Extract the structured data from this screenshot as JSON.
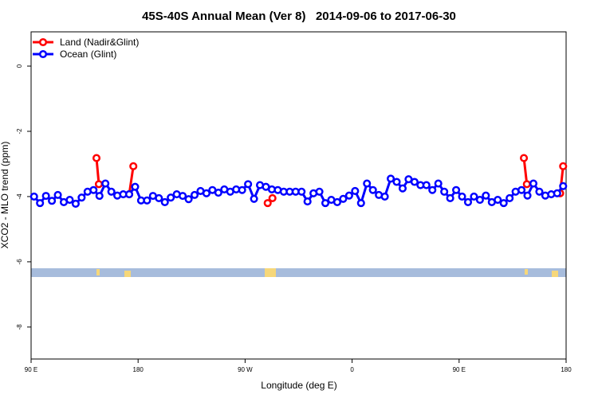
{
  "chart_data": {
    "type": "line",
    "title": "45S-40S Annual Mean (Ver 8)   2014-09-06 to 2017-06-30",
    "xlabel": "Longitude (deg E)",
    "ylabel": "XCO2 - MLO trend (ppm)",
    "xlim": [
      90,
      540
    ],
    "ylim": [
      -8.98,
      1.05
    ],
    "xticks": [
      {
        "value": 90,
        "label": "90 E"
      },
      180,
      {
        "value": 270,
        "label": "90 W"
      },
      {
        "value": 360,
        "label": "0"
      },
      {
        "value": 450,
        "label": "90 E"
      },
      {
        "value": 540,
        "label": "180"
      }
    ],
    "yticks": [
      0,
      -2,
      -4,
      -6,
      -8
    ],
    "legend": "top-left",
    "series": [
      {
        "name": "Land (Nadir&Glint)",
        "color": "#ff0000",
        "x": [
          145,
          147,
          null,
          172.5,
          176,
          null,
          289,
          293,
          null,
          504.5,
          507,
          null,
          535,
          537.5
        ],
        "values": [
          -2.82,
          -3.62,
          null,
          -3.93,
          -3.07,
          null,
          -4.2,
          -4.05,
          null,
          -2.82,
          -3.62,
          null,
          -3.9,
          -3.07
        ]
      },
      {
        "name": "Ocean (Glint)",
        "color": "#0000ff",
        "x": [
          92.5,
          97.5,
          102.5,
          107.5,
          112.5,
          117.5,
          122.5,
          127.5,
          132.5,
          137.5,
          142.5,
          147.5,
          152.5,
          157.5,
          162.5,
          167.5,
          172.5,
          177.5,
          182.5,
          187.5,
          192.5,
          197.5,
          202.5,
          207.5,
          212.5,
          217.5,
          222.5,
          227.5,
          232.5,
          237.5,
          242.5,
          247.5,
          252.5,
          257.5,
          262.5,
          267.5,
          272.5,
          277.5,
          282.5,
          287.5,
          292.5,
          297.5,
          302.5,
          307.5,
          312.5,
          317.5,
          322.5,
          327.5,
          332.5,
          337.5,
          342.5,
          347.5,
          352.5,
          357.5,
          362.5,
          367.5,
          372.5,
          377.5,
          382.5,
          387.5,
          392.5,
          397.5,
          402.5,
          407.5,
          412.5,
          417.5,
          422.5,
          427.5,
          432.5,
          437.5,
          442.5,
          447.5,
          452.5,
          457.5,
          462.5,
          467.5,
          472.5,
          477.5,
          482.5,
          487.5,
          492.5,
          497.5,
          502.5,
          507.5,
          512.5,
          517.5,
          522.5,
          527.5,
          532.5,
          537.5
        ],
        "values": [
          -4.0,
          -4.2,
          -3.98,
          -4.13,
          -3.95,
          -4.17,
          -4.1,
          -4.22,
          -4.03,
          -3.85,
          -3.8,
          -3.98,
          -3.6,
          -3.85,
          -3.97,
          -3.93,
          -3.93,
          -3.7,
          -4.12,
          -4.12,
          -3.98,
          -4.05,
          -4.17,
          -4.03,
          -3.93,
          -3.98,
          -4.08,
          -3.95,
          -3.83,
          -3.9,
          -3.8,
          -3.88,
          -3.78,
          -3.85,
          -3.78,
          -3.8,
          -3.62,
          -4.07,
          -3.65,
          -3.7,
          -3.78,
          -3.8,
          -3.85,
          -3.85,
          -3.85,
          -3.85,
          -4.15,
          -3.9,
          -3.85,
          -4.2,
          -4.1,
          -4.17,
          -4.07,
          -3.97,
          -3.83,
          -4.2,
          -3.6,
          -3.8,
          -3.95,
          -4.0,
          -3.45,
          -3.55,
          -3.75,
          -3.47,
          -3.55,
          -3.65,
          -3.65,
          -3.8,
          -3.6,
          -3.85,
          -4.05,
          -3.8,
          -4.0,
          -4.17,
          -4.0,
          -4.1,
          -3.97,
          -4.17,
          -4.1,
          -4.2,
          -4.05,
          -3.85,
          -3.8,
          -3.97,
          -3.6,
          -3.85,
          -3.97,
          -3.93,
          -3.9,
          -3.68
        ]
      }
    ]
  }
}
